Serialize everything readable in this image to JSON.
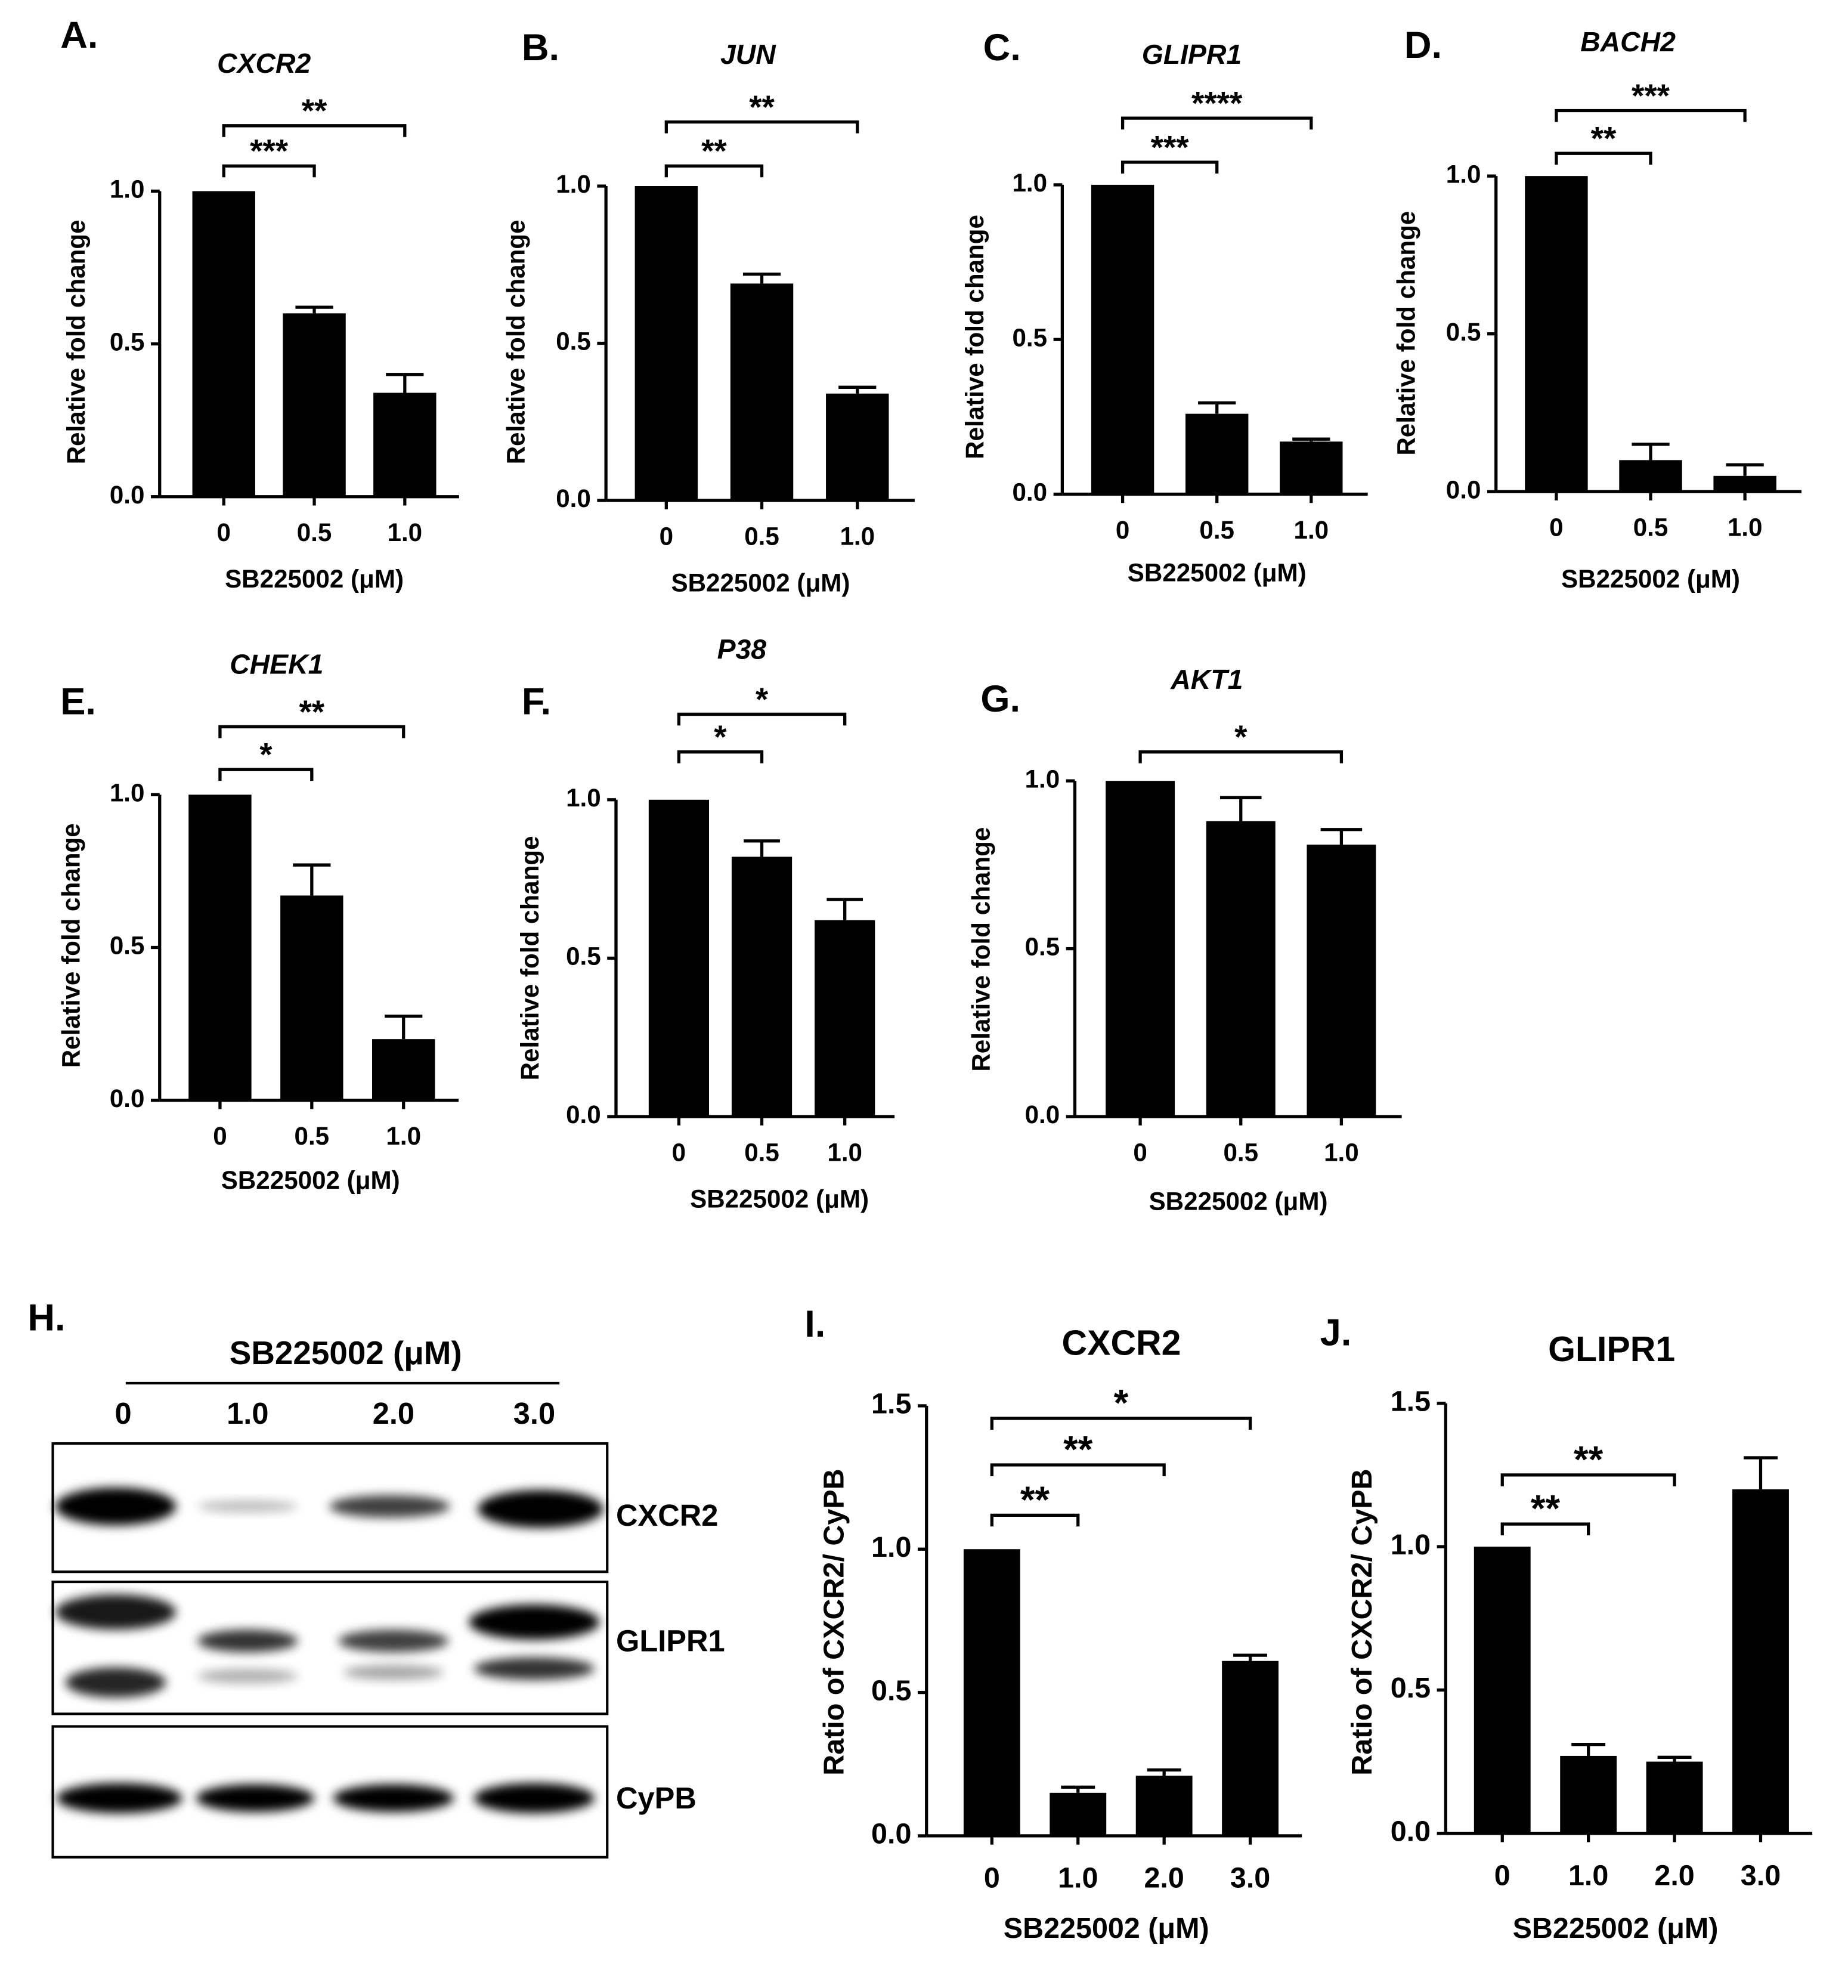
{
  "chart_data": [
    {
      "type": "bar",
      "panel": "A.",
      "title": "CXCR2",
      "x_label": "SB225002 (μM)",
      "y_label": "Relative fold change",
      "categories": [
        "0",
        "0.5",
        "1.0"
      ],
      "values": [
        1.0,
        0.6,
        0.34
      ],
      "errors": [
        0,
        0.02,
        0.06
      ],
      "color": "#000000",
      "ylim": [
        0,
        1.0
      ],
      "yticks": [
        {
          "value": 0,
          "label": "0.0"
        },
        {
          "value": 0.5,
          "label": "0.5"
        },
        {
          "value": 1.0,
          "label": "1.0"
        }
      ],
      "comparisons": [
        {
          "from": "0",
          "to": "0.5",
          "label": "***"
        },
        {
          "from": "0",
          "to": "1.0",
          "label": "**"
        }
      ]
    },
    {
      "type": "bar",
      "panel": "B.",
      "title": "JUN",
      "x_label": "SB225002 (μM)",
      "y_label": "Relative fold change",
      "categories": [
        "0",
        "0.5",
        "1.0"
      ],
      "values": [
        1.0,
        0.69,
        0.34
      ],
      "errors": [
        0,
        0.03,
        0.02
      ],
      "color": "#000000",
      "ylim": [
        0,
        1.0
      ],
      "yticks": [
        {
          "value": 0,
          "label": "0.0"
        },
        {
          "value": 0.5,
          "label": "0.5"
        },
        {
          "value": 1.0,
          "label": "1.0"
        }
      ],
      "comparisons": [
        {
          "from": "0",
          "to": "0.5",
          "label": "**"
        },
        {
          "from": "0",
          "to": "1.0",
          "label": "**"
        }
      ]
    },
    {
      "type": "bar",
      "panel": "C.",
      "title": "GLIPR1",
      "x_label": "SB225002 (μM)",
      "y_label": "Relative fold change",
      "categories": [
        "0",
        "0.5",
        "1.0"
      ],
      "values": [
        1.0,
        0.26,
        0.17
      ],
      "errors": [
        0,
        0.035,
        0.008
      ],
      "color": "#000000",
      "ylim": [
        0,
        1.0
      ],
      "yticks": [
        {
          "value": 0,
          "label": "0.0"
        },
        {
          "value": 0.5,
          "label": "0.5"
        },
        {
          "value": 1.0,
          "label": "1.0"
        }
      ],
      "comparisons": [
        {
          "from": "0",
          "to": "0.5",
          "label": "***"
        },
        {
          "from": "0",
          "to": "1.0",
          "label": "****"
        }
      ]
    },
    {
      "type": "bar",
      "panel": "D.",
      "title": "BACH2",
      "x_label": "SB225002 (μM)",
      "y_label": "Relative fold change",
      "categories": [
        "0",
        "0.5",
        "1.0"
      ],
      "values": [
        1.0,
        0.1,
        0.05
      ],
      "errors": [
        0,
        0.05,
        0.035
      ],
      "color": "#000000",
      "ylim": [
        0,
        1.0
      ],
      "yticks": [
        {
          "value": 0,
          "label": "0.0"
        },
        {
          "value": 0.5,
          "label": "0.5"
        },
        {
          "value": 1.0,
          "label": "1.0"
        }
      ],
      "comparisons": [
        {
          "from": "0",
          "to": "0.5",
          "label": "**"
        },
        {
          "from": "0",
          "to": "1.0",
          "label": "***"
        }
      ]
    },
    {
      "type": "bar",
      "panel": "E.",
      "title": "CHEK1",
      "x_label": "SB225002 (μM)",
      "y_label": "Relative fold change",
      "categories": [
        "0",
        "0.5",
        "1.0"
      ],
      "values": [
        1.0,
        0.67,
        0.2
      ],
      "errors": [
        0,
        0.1,
        0.075
      ],
      "color": "#000000",
      "ylim": [
        0,
        1.0
      ],
      "yticks": [
        {
          "value": 0,
          "label": "0.0"
        },
        {
          "value": 0.5,
          "label": "0.5"
        },
        {
          "value": 1.0,
          "label": "1.0"
        }
      ],
      "comparisons": [
        {
          "from": "0",
          "to": "0.5",
          "label": "*"
        },
        {
          "from": "0",
          "to": "1.0",
          "label": "**"
        }
      ]
    },
    {
      "type": "bar",
      "panel": "F.",
      "title": "P38",
      "x_label": "SB225002 (μM)",
      "y_label": "Relative fold change",
      "categories": [
        "0",
        "0.5",
        "1.0"
      ],
      "values": [
        1.0,
        0.82,
        0.62
      ],
      "errors": [
        0,
        0.05,
        0.065
      ],
      "color": "#000000",
      "ylim": [
        0,
        1.0
      ],
      "yticks": [
        {
          "value": 0,
          "label": "0.0"
        },
        {
          "value": 0.5,
          "label": "0.5"
        },
        {
          "value": 1.0,
          "label": "1.0"
        }
      ],
      "comparisons": [
        {
          "from": "0",
          "to": "0.5",
          "label": "*"
        },
        {
          "from": "0",
          "to": "1.0",
          "label": "*"
        }
      ]
    },
    {
      "type": "bar",
      "panel": "G.",
      "title": "AKT1",
      "x_label": "SB225002 (μM)",
      "y_label": "Relative fold change",
      "categories": [
        "0",
        "0.5",
        "1.0"
      ],
      "values": [
        1.0,
        0.88,
        0.81
      ],
      "errors": [
        0,
        0.07,
        0.045
      ],
      "color": "#000000",
      "ylim": [
        0,
        1.0
      ],
      "yticks": [
        {
          "value": 0,
          "label": "0.0"
        },
        {
          "value": 0.5,
          "label": "0.5"
        },
        {
          "value": 1.0,
          "label": "1.0"
        }
      ],
      "comparisons": [
        {
          "from": "0",
          "to": "1.0",
          "label": "*"
        }
      ]
    },
    {
      "type": "bar",
      "panel": "I.",
      "title": "CXCR2",
      "x_label": "SB225002 (μM)",
      "y_label": "Ratio of CXCR2/ CyPB",
      "categories": [
        "0",
        "1.0",
        "2.0",
        "3.0"
      ],
      "values": [
        1.0,
        0.15,
        0.21,
        0.61
      ],
      "errors": [
        0,
        0.02,
        0.02,
        0.02
      ],
      "color": "#000000",
      "ylim": [
        0,
        1.5
      ],
      "yticks": [
        {
          "value": 0,
          "label": "0.0"
        },
        {
          "value": 0.5,
          "label": "0.5"
        },
        {
          "value": 1.0,
          "label": "1.0"
        },
        {
          "value": 1.5,
          "label": "1.5"
        }
      ],
      "comparisons": [
        {
          "from": "0",
          "to": "1.0",
          "label": "**"
        },
        {
          "from": "0",
          "to": "2.0",
          "label": "**"
        },
        {
          "from": "0",
          "to": "3.0",
          "label": "*"
        }
      ]
    },
    {
      "type": "bar",
      "panel": "J.",
      "title": "GLIPR1",
      "x_label": "SB225002 (μM)",
      "y_label": "Ratio of CXCR2/ CyPB",
      "categories": [
        "0",
        "1.0",
        "2.0",
        "3.0"
      ],
      "values": [
        1.0,
        0.27,
        0.25,
        1.2
      ],
      "errors": [
        0,
        0.04,
        0.015,
        0.11
      ],
      "color": "#000000",
      "ylim": [
        0,
        1.5
      ],
      "yticks": [
        {
          "value": 0,
          "label": "0.0"
        },
        {
          "value": 0.5,
          "label": "0.5"
        },
        {
          "value": 1.0,
          "label": "1.0"
        },
        {
          "value": 1.5,
          "label": "1.5"
        }
      ],
      "comparisons": [
        {
          "from": "0",
          "to": "1.0",
          "label": "**"
        },
        {
          "from": "0",
          "to": "2.0",
          "label": "**"
        }
      ]
    }
  ],
  "blot": {
    "panel": "H.",
    "treatment": "SB225002 (μM)",
    "lanes": [
      "0",
      "1.0",
      "2.0",
      "3.0"
    ],
    "bands": [
      "CXCR2",
      "GLIPR1",
      "CyPB"
    ]
  }
}
